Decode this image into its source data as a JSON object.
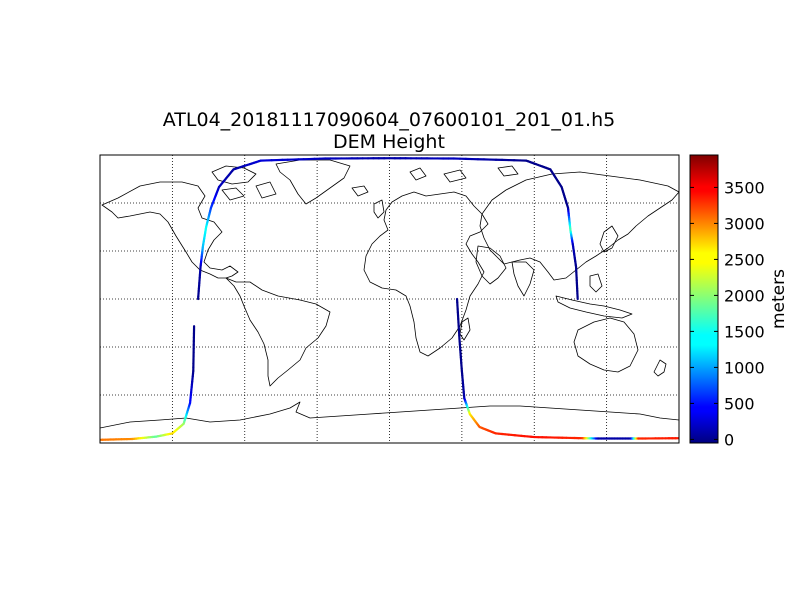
{
  "figure": {
    "title_line1": "ATL04_20181117090604_07600101_201_01.h5",
    "title_line2": "DEM Height"
  },
  "map": {
    "projection": "cylindrical",
    "lon_range": [
      -180,
      180
    ],
    "lat_range": [
      -90,
      90
    ],
    "graticule": {
      "meridians": [
        -135,
        -90,
        -45,
        0,
        45,
        90,
        135
      ],
      "parallels": [
        -60,
        -30,
        0,
        30,
        60
      ],
      "style": "dotted"
    }
  },
  "colorbar": {
    "label": "meters",
    "colormap": "jet",
    "vmin": -50,
    "vmax": 3950,
    "ticks": [
      0,
      500,
      1000,
      1500,
      2000,
      2500,
      3000,
      3500
    ],
    "tick_labels": [
      "0",
      "500",
      "1000",
      "1500",
      "2000",
      "2500",
      "3000",
      "3500"
    ]
  },
  "chart_data": {
    "type": "scatter",
    "title": "ATL04_20181117090604_07600101_201_01.h5 DEM Height",
    "x_name": "longitude",
    "y_name": "latitude",
    "value_name": "DEM Height",
    "colorbar_label": "meters",
    "xlim": [
      -180,
      180
    ],
    "ylim": [
      -90,
      90
    ],
    "segments": [
      {
        "points": [
          {
            "lon": -180,
            "lat": -88,
            "value": 3000
          },
          {
            "lon": -160,
            "lat": -87.5,
            "value": 2900
          },
          {
            "lon": -145,
            "lat": -86,
            "value": 1800
          },
          {
            "lon": -135,
            "lat": -84,
            "value": 2600
          },
          {
            "lon": -128,
            "lat": -78,
            "value": 2100
          },
          {
            "lon": -124,
            "lat": -65,
            "value": 500
          },
          {
            "lon": -122,
            "lat": -45,
            "value": 0
          },
          {
            "lon": -121.5,
            "lat": -17,
            "value": 0
          }
        ]
      },
      {
        "points": [
          {
            "lon": -119,
            "lat": 0,
            "value": 0
          },
          {
            "lon": -117.5,
            "lat": 20,
            "value": 100
          },
          {
            "lon": -116,
            "lat": 33,
            "value": 1200
          },
          {
            "lon": -114,
            "lat": 45,
            "value": 1500
          },
          {
            "lon": -111,
            "lat": 57,
            "value": 700
          },
          {
            "lon": -106,
            "lat": 70,
            "value": 200
          },
          {
            "lon": -97,
            "lat": 81,
            "value": 100
          },
          {
            "lon": -80,
            "lat": 86.5,
            "value": 300
          },
          {
            "lon": -40,
            "lat": 87.8,
            "value": 200
          },
          {
            "lon": 0,
            "lat": 88,
            "value": 100
          },
          {
            "lon": 40,
            "lat": 87.8,
            "value": 200
          },
          {
            "lon": 85,
            "lat": 86.5,
            "value": 0
          },
          {
            "lon": 100,
            "lat": 81,
            "value": 0
          },
          {
            "lon": 107,
            "lat": 70,
            "value": 0
          },
          {
            "lon": 111,
            "lat": 57,
            "value": 0
          },
          {
            "lon": 112.5,
            "lat": 43,
            "value": 1800
          },
          {
            "lon": 114,
            "lat": 34,
            "value": 200
          },
          {
            "lon": 116,
            "lat": 20,
            "value": 0
          },
          {
            "lon": 117,
            "lat": 0,
            "value": 0
          }
        ]
      },
      {
        "points": [
          {
            "lon": 42,
            "lat": 0,
            "value": 0
          },
          {
            "lon": 43.5,
            "lat": -25,
            "value": 0
          },
          {
            "lon": 45,
            "lat": -45,
            "value": 0
          },
          {
            "lon": 46.5,
            "lat": -62,
            "value": 100
          },
          {
            "lon": 50,
            "lat": -72,
            "value": 2500
          },
          {
            "lon": 56,
            "lat": -80,
            "value": 3100
          },
          {
            "lon": 66,
            "lat": -84,
            "value": 3300
          },
          {
            "lon": 90,
            "lat": -86.3,
            "value": 3400
          },
          {
            "lon": 120,
            "lat": -87,
            "value": 3300
          },
          {
            "lon": 130,
            "lat": -87.2,
            "value": 100
          },
          {
            "lon": 150,
            "lat": -87.2,
            "value": 100
          },
          {
            "lon": 155,
            "lat": -87.2,
            "value": 3300
          },
          {
            "lon": 180,
            "lat": -87,
            "value": 3350
          }
        ]
      }
    ]
  }
}
